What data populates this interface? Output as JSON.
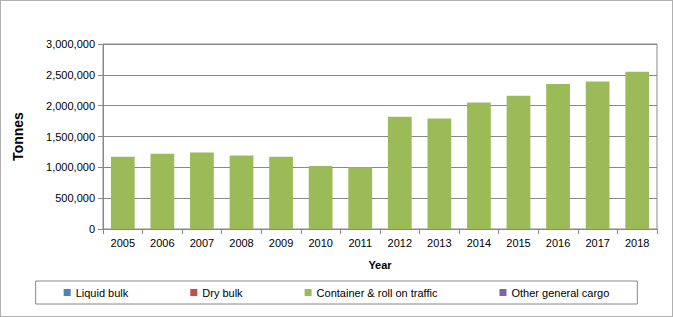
{
  "chart_data": {
    "type": "bar",
    "x_label": "Year",
    "y_label": "Tonnes",
    "categories": [
      "2005",
      "2006",
      "2007",
      "2008",
      "2009",
      "2010",
      "2011",
      "2012",
      "2013",
      "2014",
      "2015",
      "2016",
      "2017",
      "2018"
    ],
    "series": [
      {
        "name": "Liquid bulk",
        "color": "#4f81bd",
        "values": [
          0,
          0,
          0,
          0,
          0,
          0,
          0,
          0,
          0,
          0,
          0,
          0,
          0,
          0
        ]
      },
      {
        "name": "Dry bulk",
        "color": "#c0504d",
        "values": [
          0,
          0,
          0,
          0,
          0,
          0,
          0,
          0,
          0,
          0,
          0,
          0,
          0,
          0
        ]
      },
      {
        "name": "Container & roll on traffic",
        "color": "#9bbb59",
        "values": [
          1170000,
          1220000,
          1240000,
          1190000,
          1170000,
          1020000,
          1000000,
          1820000,
          1790000,
          2050000,
          2160000,
          2350000,
          2390000,
          2550000
        ]
      },
      {
        "name": "Other general cargo",
        "color": "#8064a2",
        "values": [
          0,
          0,
          0,
          0,
          0,
          0,
          0,
          0,
          0,
          0,
          0,
          0,
          0,
          0
        ]
      }
    ],
    "ylim": [
      0,
      3000000
    ],
    "yticks": [
      {
        "value": 0,
        "label": "0"
      },
      {
        "value": 500000,
        "label": "500,000"
      },
      {
        "value": 1000000,
        "label": "1,000,000"
      },
      {
        "value": 1500000,
        "label": "1,500,000"
      },
      {
        "value": 2000000,
        "label": "2,000,000"
      },
      {
        "value": 2500000,
        "label": "2,500,000"
      },
      {
        "value": 3000000,
        "label": "3,000,000"
      }
    ],
    "stacked": true,
    "grid": true,
    "legend": "bottom"
  }
}
